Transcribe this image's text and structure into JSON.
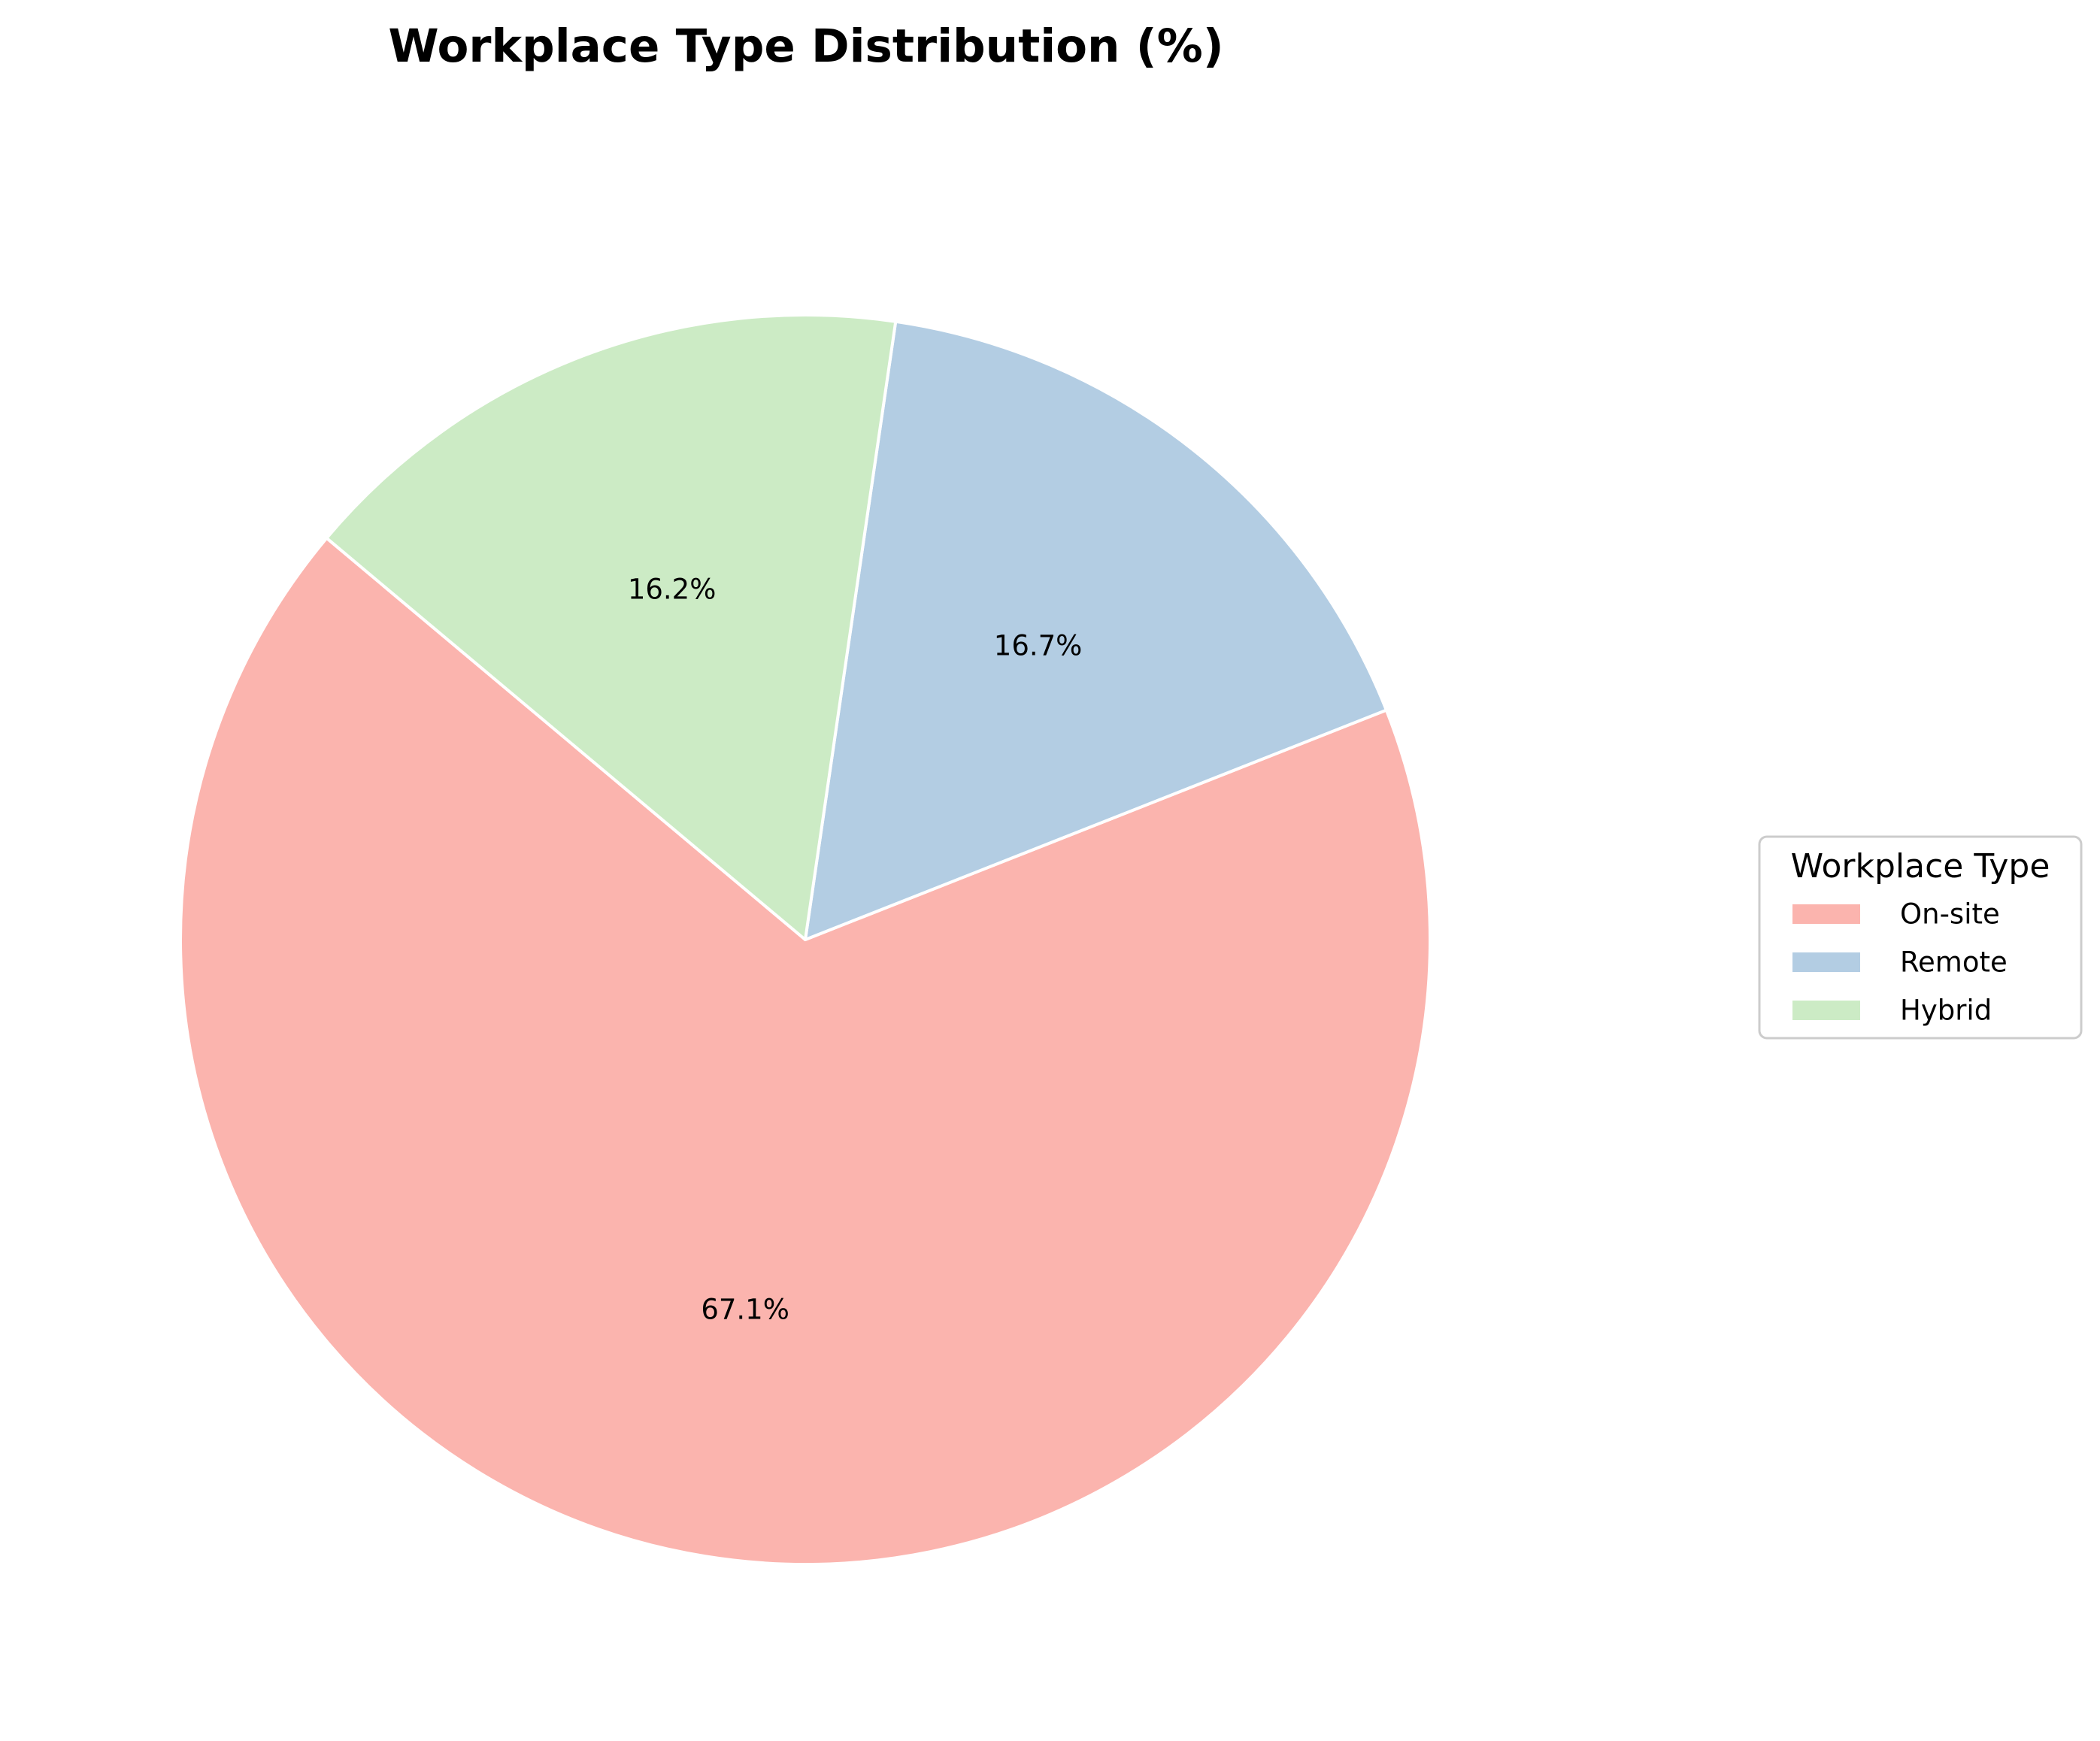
{
  "chart_data": {
    "type": "pie",
    "title": "Workplace Type Distribution (%)",
    "legend_title": "Workplace Type",
    "legend_position": "right",
    "start_angle_deg": 140,
    "direction": "counterclockwise",
    "slices": [
      {
        "label": "On-site",
        "value": 67.1,
        "pct_label": "67.1%",
        "color": "#FBB4AE"
      },
      {
        "label": "Remote",
        "value": 16.7,
        "pct_label": "16.7%",
        "color": "#B3CDE3"
      },
      {
        "label": "Hybrid",
        "value": 16.2,
        "pct_label": "16.2%",
        "color": "#CCEBC5"
      }
    ],
    "wedge_edge_color": "#FFFFFF"
  }
}
